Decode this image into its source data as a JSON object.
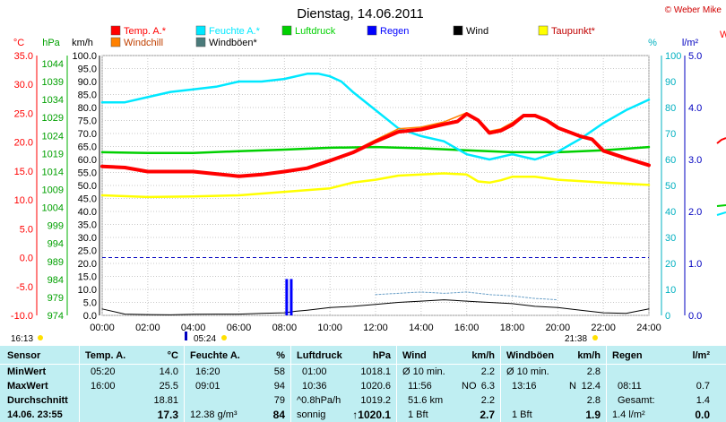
{
  "header": {
    "title": "Dienstag, 14.06.2011",
    "credit": "© Weber Mike"
  },
  "axis_units": {
    "temp": "°C",
    "pressure": "hPa",
    "wind": "km/h",
    "humidity": "%",
    "rain": "l/m²"
  },
  "colors": {
    "temp": "#ff0000",
    "windchill": "#ff8000",
    "humidity": "#00e8ff",
    "pressure": "#00d000",
    "rain": "#0000ff",
    "wind": "#000000",
    "dewpoint": "#ffff00",
    "gust": "#4a7a7a",
    "table_bg": "#bfeef2"
  },
  "legend": [
    {
      "label": "Temp. A.*",
      "color": "#ff0000"
    },
    {
      "label": "Feuchte A.*",
      "color": "#00e8ff"
    },
    {
      "label": "Luftdruck",
      "color": "#00d000"
    },
    {
      "label": "Regen",
      "color": "#0000ff"
    },
    {
      "label": "Wind",
      "color": "#000000"
    },
    {
      "label": "Taupunkt*",
      "color": "#ffff00"
    },
    {
      "label": "Windchill",
      "color": "#ff8000"
    },
    {
      "label": "Windböen*",
      "color": "#4a7a7a"
    }
  ],
  "sun": {
    "left_time": "16:13",
    "sunrise": "05:24",
    "sunset": "21:38"
  },
  "chart_data": {
    "type": "line",
    "x_range_hours": [
      0,
      24
    ],
    "x_ticks": [
      "00:00",
      "02:00",
      "04:00",
      "06:00",
      "08:00",
      "10:00",
      "12:00",
      "14:00",
      "16:00",
      "18:00",
      "20:00",
      "22:00",
      "24:00"
    ],
    "temp_ticks": [
      "35.0",
      "30.0",
      "25.0",
      "20.0",
      "15.0",
      "10.0",
      "5.0",
      "0.0",
      "-5.0",
      "-10.0"
    ],
    "pressure_ticks": [
      "1044",
      "1039",
      "1034",
      "1029",
      "1024",
      "1019",
      "1014",
      "1009",
      "1004",
      "999",
      "994",
      "989",
      "984",
      "979",
      "974"
    ],
    "wind_ticks": [
      "100.0",
      "95.0",
      "90.0",
      "85.0",
      "80.0",
      "75.0",
      "70.0",
      "65.0",
      "60.0",
      "55.0",
      "50.0",
      "45.0",
      "40.0",
      "35.0",
      "30.0",
      "25.0",
      "20.0",
      "15.0",
      "10.0",
      "5.0",
      "0.0"
    ],
    "humidity_ticks": [
      "100",
      "90",
      "80",
      "70",
      "60",
      "50",
      "40",
      "30",
      "20",
      "10",
      "0"
    ],
    "rain_ticks": [
      "5.0",
      "4.0",
      "3.0",
      "2.0",
      "1.0",
      "0.0"
    ],
    "wind_range": [
      0,
      100
    ],
    "temp_range": [
      -10,
      35
    ],
    "humidity_range": [
      0,
      100
    ],
    "rain_range": [
      0,
      5
    ],
    "grid": true,
    "series": [
      {
        "name": "Temp. A.*",
        "axis": "temp",
        "points": [
          [
            0,
            15.8
          ],
          [
            1,
            15.6
          ],
          [
            2,
            14.9
          ],
          [
            3,
            14.9
          ],
          [
            4,
            14.9
          ],
          [
            5,
            14.5
          ],
          [
            6,
            14.1
          ],
          [
            7,
            14.4
          ],
          [
            8,
            14.9
          ],
          [
            9,
            15.5
          ],
          [
            10,
            16.8
          ],
          [
            11,
            18.2
          ],
          [
            12,
            20.1
          ],
          [
            13,
            21.8
          ],
          [
            14,
            22.2
          ],
          [
            15,
            23.1
          ],
          [
            15.6,
            23.6
          ],
          [
            16,
            24.9
          ],
          [
            16.5,
            23.8
          ],
          [
            17,
            21.6
          ],
          [
            17.5,
            22.0
          ],
          [
            18,
            23.0
          ],
          [
            18.5,
            24.6
          ],
          [
            19,
            24.6
          ],
          [
            19.5,
            23.8
          ],
          [
            20,
            22.5
          ],
          [
            21,
            21.0
          ],
          [
            21.5,
            20.5
          ],
          [
            22,
            18.5
          ],
          [
            23,
            17.2
          ],
          [
            24,
            16.0
          ]
        ]
      },
      {
        "name": "Windchill",
        "axis": "temp",
        "points": [
          [
            11,
            18.4
          ],
          [
            12,
            20.4
          ],
          [
            13,
            22.3
          ],
          [
            14,
            22.6
          ],
          [
            15,
            23.5
          ],
          [
            16,
            25.1
          ],
          [
            16.5,
            24.0
          ],
          [
            17,
            21.9
          ],
          [
            17.5,
            22.3
          ],
          [
            18,
            23.4
          ],
          [
            18.5,
            24.8
          ],
          [
            19,
            24.8
          ],
          [
            19.5,
            24.0
          ],
          [
            20,
            22.8
          ]
        ]
      },
      {
        "name": "Feuchte A.*",
        "axis": "humidity",
        "points": [
          [
            0,
            82
          ],
          [
            1,
            82
          ],
          [
            2,
            84
          ],
          [
            3,
            86
          ],
          [
            4,
            87
          ],
          [
            5,
            88
          ],
          [
            6,
            90
          ],
          [
            7,
            90
          ],
          [
            8,
            91
          ],
          [
            9,
            93
          ],
          [
            9.5,
            93
          ],
          [
            10,
            92
          ],
          [
            10.5,
            90
          ],
          [
            11,
            86
          ],
          [
            12,
            79
          ],
          [
            13,
            72
          ],
          [
            14,
            69
          ],
          [
            15,
            67
          ],
          [
            16,
            62
          ],
          [
            17,
            60
          ],
          [
            18,
            62
          ],
          [
            19,
            60
          ],
          [
            20,
            63
          ],
          [
            21,
            68
          ],
          [
            22,
            74
          ],
          [
            23,
            79
          ],
          [
            24,
            83
          ]
        ]
      },
      {
        "name": "Luftdruck",
        "axis": "wind",
        "points": [
          [
            0,
            62.8
          ],
          [
            2,
            62.5
          ],
          [
            4,
            62.5
          ],
          [
            6,
            63.2
          ],
          [
            8,
            63.8
          ],
          [
            10,
            64.5
          ],
          [
            12,
            64.8
          ],
          [
            14,
            64.3
          ],
          [
            16,
            63.5
          ],
          [
            18,
            62.8
          ],
          [
            20,
            62.8
          ],
          [
            22,
            63.5
          ],
          [
            24,
            64.8
          ]
        ]
      },
      {
        "name": "Taupunkt*",
        "axis": "temp",
        "points": [
          [
            0,
            10.8
          ],
          [
            2,
            10.5
          ],
          [
            4,
            10.6
          ],
          [
            6,
            10.8
          ],
          [
            8,
            11.4
          ],
          [
            10,
            12.0
          ],
          [
            11,
            13.0
          ],
          [
            12,
            13.5
          ],
          [
            13,
            14.2
          ],
          [
            14,
            14.4
          ],
          [
            15,
            14.6
          ],
          [
            16,
            14.4
          ],
          [
            16.5,
            13.2
          ],
          [
            17,
            13.0
          ],
          [
            17.5,
            13.4
          ],
          [
            18,
            14.0
          ],
          [
            19,
            14.0
          ],
          [
            20,
            13.5
          ],
          [
            22,
            13.0
          ],
          [
            24,
            12.6
          ]
        ]
      },
      {
        "name": "Wind",
        "axis": "wind",
        "points": [
          [
            0,
            2.5
          ],
          [
            1,
            0.5
          ],
          [
            2,
            0.3
          ],
          [
            3,
            0.2
          ],
          [
            4,
            0.4
          ],
          [
            5,
            0.5
          ],
          [
            6,
            0.5
          ],
          [
            7,
            0.8
          ],
          [
            8,
            1.0
          ],
          [
            8.5,
            1.6
          ],
          [
            9,
            2.0
          ],
          [
            10,
            3.0
          ],
          [
            11,
            3.5
          ],
          [
            12,
            4.2
          ],
          [
            13,
            5.0
          ],
          [
            14,
            5.5
          ],
          [
            15,
            6.0
          ],
          [
            16,
            5.5
          ],
          [
            16.5,
            5.2
          ],
          [
            17,
            5.0
          ],
          [
            18,
            4.5
          ],
          [
            19,
            3.5
          ],
          [
            20,
            3.0
          ],
          [
            21,
            2.0
          ],
          [
            22,
            1.0
          ],
          [
            23,
            0.8
          ],
          [
            24,
            2.5
          ]
        ]
      },
      {
        "name": "Windböen*",
        "axis": "wind",
        "points": [
          [
            12,
            8
          ],
          [
            13,
            8.5
          ],
          [
            14,
            9
          ],
          [
            15,
            8.5
          ],
          [
            16,
            9
          ],
          [
            17,
            8
          ],
          [
            18,
            7.5
          ],
          [
            19,
            6.5
          ],
          [
            20,
            6
          ]
        ]
      },
      {
        "name": "Regen",
        "axis": "rain",
        "bars": [
          [
            8.1,
            0.7
          ],
          [
            8.3,
            0.7
          ]
        ]
      }
    ],
    "dashed_line": {
      "axis": "temp",
      "value": 0.0
    }
  },
  "table": {
    "sensor": {
      "header": "Sensor",
      "rows": [
        "MinWert",
        "MaxWert",
        "Durchschnitt",
        "14.06. 23:55"
      ]
    },
    "temp": {
      "header": "Temp. A.",
      "unit": "°C",
      "rows": [
        {
          "time": "05:20",
          "value": "14.0"
        },
        {
          "time": "16:00",
          "value": "25.5"
        },
        {
          "time": "",
          "value": "18.81"
        },
        {
          "time": "",
          "value": "17.3"
        }
      ]
    },
    "humidity": {
      "header": "Feuchte A.",
      "unit": "%",
      "rows": [
        {
          "time": "16:20",
          "value": "58"
        },
        {
          "time": "09:01",
          "value": "94"
        },
        {
          "time": "",
          "value": "79"
        },
        {
          "time": "12.38 g/m³",
          "value": "84"
        }
      ]
    },
    "pressure": {
      "header": "Luftdruck",
      "unit": "hPa",
      "rows": [
        {
          "time": "01:00",
          "value": "1018.1"
        },
        {
          "time": "10:36",
          "value": "1020.6"
        },
        {
          "time": "^0.8hPa/h",
          "value": "1019.2"
        },
        {
          "time": "sonnig",
          "value": "↑1020.1"
        }
      ]
    },
    "wind": {
      "header": "Wind",
      "unit": "km/h",
      "rows": [
        {
          "time": "Ø 10 min.",
          "mid": "",
          "value": "2.2"
        },
        {
          "time": "11:56",
          "mid": "NO",
          "value": "6.3"
        },
        {
          "time": "51.6 km",
          "mid": "",
          "value": "2.2"
        },
        {
          "time": "1 Bft",
          "mid": "",
          "value": "2.7"
        }
      ]
    },
    "gust": {
      "header": "Windböen",
      "unit": "km/h",
      "rows": [
        {
          "time": "Ø 10 min.",
          "mid": "",
          "value": "2.8"
        },
        {
          "time": "13:16",
          "mid": "N",
          "value": "12.4"
        },
        {
          "time": "",
          "mid": "",
          "value": "2.8"
        },
        {
          "time": "1 Bft",
          "mid": "",
          "value": "1.9"
        }
      ]
    },
    "rain": {
      "header": "Regen",
      "unit": "l/m²",
      "rows": [
        {
          "time": "",
          "value": ""
        },
        {
          "time": "08:11",
          "value": "0.7"
        },
        {
          "time": "Gesamt:",
          "value": "1.4"
        },
        {
          "time": "1.4 l/m²",
          "value": "0.0"
        }
      ]
    }
  }
}
